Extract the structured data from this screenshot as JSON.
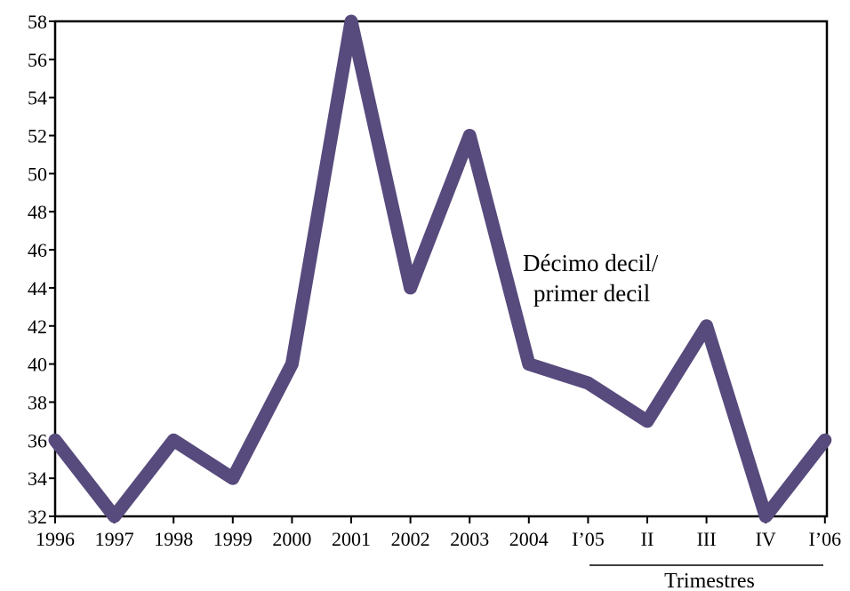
{
  "chart_data": {
    "type": "line",
    "categories": [
      "1996",
      "1997",
      "1998",
      "1999",
      "2000",
      "2001",
      "2002",
      "2003",
      "2004",
      "I’05",
      "II",
      "III",
      "IV",
      "I’06"
    ],
    "series": [
      {
        "values": [
          36,
          32,
          36,
          34,
          40,
          58,
          44,
          52,
          40,
          39,
          37,
          42,
          32,
          36
        ]
      }
    ],
    "ylim": [
      32,
      58
    ],
    "yticks": [
      32,
      34,
      36,
      38,
      40,
      42,
      44,
      46,
      48,
      50,
      52,
      54,
      56,
      58
    ],
    "annotation": [
      "Décimo  decil/",
      "primer  decil"
    ],
    "group_label": "Trimestres",
    "line_color": "#574a7c",
    "grid": false
  }
}
